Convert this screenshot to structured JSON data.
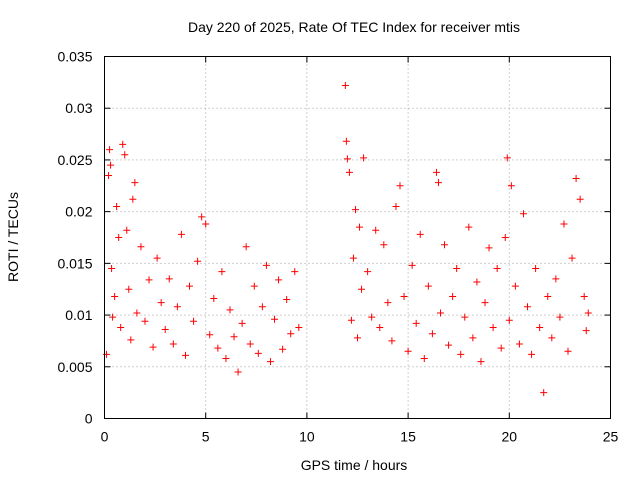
{
  "chart_data": {
    "type": "scatter",
    "title": "Day 220 of 2025, Rate Of TEC Index for receiver mtis",
    "xlabel": "GPS time / hours",
    "ylabel": "ROTI / TECUs",
    "xlim": [
      0,
      25
    ],
    "ylim": [
      0,
      0.035
    ],
    "x_ticks": [
      0,
      5,
      10,
      15,
      20,
      25
    ],
    "x_tick_labels": [
      "0",
      "5",
      "10",
      "15",
      "20",
      "25"
    ],
    "y_ticks": [
      0,
      0.005,
      0.01,
      0.015,
      0.02,
      0.025,
      0.03,
      0.035
    ],
    "y_tick_labels": [
      "0",
      "0.005",
      "0.01",
      "0.015",
      "0.02",
      "0.025",
      "0.03",
      "0.035"
    ],
    "grid": true,
    "marker": "+",
    "color": "#ff0000",
    "series": [
      {
        "name": "ROTI",
        "points": [
          [
            0.1,
            0.0062
          ],
          [
            0.2,
            0.0235
          ],
          [
            0.25,
            0.026
          ],
          [
            0.3,
            0.0245
          ],
          [
            0.35,
            0.0145
          ],
          [
            0.4,
            0.0098
          ],
          [
            0.5,
            0.0118
          ],
          [
            0.6,
            0.0205
          ],
          [
            0.7,
            0.0175
          ],
          [
            0.8,
            0.0088
          ],
          [
            0.9,
            0.0265
          ],
          [
            1.0,
            0.0255
          ],
          [
            1.1,
            0.0182
          ],
          [
            1.2,
            0.0125
          ],
          [
            1.3,
            0.0076
          ],
          [
            1.4,
            0.0212
          ],
          [
            1.5,
            0.0228
          ],
          [
            1.6,
            0.0102
          ],
          [
            1.8,
            0.0166
          ],
          [
            2.0,
            0.0094
          ],
          [
            2.2,
            0.0134
          ],
          [
            2.4,
            0.0069
          ],
          [
            2.6,
            0.0155
          ],
          [
            2.8,
            0.0112
          ],
          [
            3.0,
            0.0086
          ],
          [
            3.2,
            0.0135
          ],
          [
            3.4,
            0.0072
          ],
          [
            3.6,
            0.0108
          ],
          [
            3.8,
            0.0178
          ],
          [
            4.0,
            0.0061
          ],
          [
            4.2,
            0.0128
          ],
          [
            4.4,
            0.0094
          ],
          [
            4.6,
            0.0152
          ],
          [
            4.8,
            0.0195
          ],
          [
            5.0,
            0.0188
          ],
          [
            5.2,
            0.0081
          ],
          [
            5.4,
            0.0116
          ],
          [
            5.6,
            0.0068
          ],
          [
            5.8,
            0.0142
          ],
          [
            6.0,
            0.0058
          ],
          [
            6.2,
            0.0105
          ],
          [
            6.4,
            0.0079
          ],
          [
            6.6,
            0.0045
          ],
          [
            6.8,
            0.0092
          ],
          [
            7.0,
            0.0166
          ],
          [
            7.2,
            0.0072
          ],
          [
            7.4,
            0.0128
          ],
          [
            7.6,
            0.0063
          ],
          [
            7.8,
            0.0108
          ],
          [
            8.0,
            0.0148
          ],
          [
            8.2,
            0.0055
          ],
          [
            8.4,
            0.0096
          ],
          [
            8.6,
            0.0134
          ],
          [
            8.8,
            0.0067
          ],
          [
            9.0,
            0.0115
          ],
          [
            9.2,
            0.0082
          ],
          [
            9.4,
            0.0142
          ],
          [
            9.6,
            0.0088
          ],
          [
            11.9,
            0.0322
          ],
          [
            11.95,
            0.0268
          ],
          [
            12.0,
            0.0251
          ],
          [
            12.1,
            0.0238
          ],
          [
            12.2,
            0.0095
          ],
          [
            12.3,
            0.0155
          ],
          [
            12.4,
            0.0202
          ],
          [
            12.5,
            0.0078
          ],
          [
            12.6,
            0.0185
          ],
          [
            12.7,
            0.0125
          ],
          [
            12.8,
            0.0252
          ],
          [
            13.0,
            0.0142
          ],
          [
            13.2,
            0.0098
          ],
          [
            13.4,
            0.0182
          ],
          [
            13.6,
            0.0088
          ],
          [
            13.8,
            0.0168
          ],
          [
            14.0,
            0.0112
          ],
          [
            14.2,
            0.0075
          ],
          [
            14.4,
            0.0205
          ],
          [
            14.6,
            0.0225
          ],
          [
            14.8,
            0.0118
          ],
          [
            15.0,
            0.0065
          ],
          [
            15.2,
            0.0148
          ],
          [
            15.4,
            0.0092
          ],
          [
            15.6,
            0.0178
          ],
          [
            15.8,
            0.0058
          ],
          [
            16.0,
            0.0128
          ],
          [
            16.2,
            0.0082
          ],
          [
            16.4,
            0.0238
          ],
          [
            16.5,
            0.0228
          ],
          [
            16.6,
            0.0102
          ],
          [
            16.8,
            0.0168
          ],
          [
            17.0,
            0.0071
          ],
          [
            17.2,
            0.0118
          ],
          [
            17.4,
            0.0145
          ],
          [
            17.6,
            0.0062
          ],
          [
            17.8,
            0.0098
          ],
          [
            18.0,
            0.0185
          ],
          [
            18.2,
            0.0078
          ],
          [
            18.4,
            0.0132
          ],
          [
            18.6,
            0.0055
          ],
          [
            18.8,
            0.0112
          ],
          [
            19.0,
            0.0165
          ],
          [
            19.2,
            0.0088
          ],
          [
            19.4,
            0.0145
          ],
          [
            19.6,
            0.0068
          ],
          [
            19.8,
            0.0175
          ],
          [
            19.9,
            0.0252
          ],
          [
            20.0,
            0.0095
          ],
          [
            20.1,
            0.0225
          ],
          [
            20.3,
            0.0128
          ],
          [
            20.5,
            0.0072
          ],
          [
            20.7,
            0.0198
          ],
          [
            20.9,
            0.0108
          ],
          [
            21.1,
            0.0062
          ],
          [
            21.3,
            0.0145
          ],
          [
            21.5,
            0.0088
          ],
          [
            21.7,
            0.0025
          ],
          [
            21.9,
            0.0118
          ],
          [
            22.1,
            0.0078
          ],
          [
            22.3,
            0.0135
          ],
          [
            22.5,
            0.0098
          ],
          [
            22.7,
            0.0188
          ],
          [
            22.9,
            0.0065
          ],
          [
            23.1,
            0.0155
          ],
          [
            23.3,
            0.0232
          ],
          [
            23.5,
            0.0212
          ],
          [
            23.7,
            0.0118
          ],
          [
            23.8,
            0.0085
          ],
          [
            23.9,
            0.0102
          ]
        ]
      }
    ]
  }
}
